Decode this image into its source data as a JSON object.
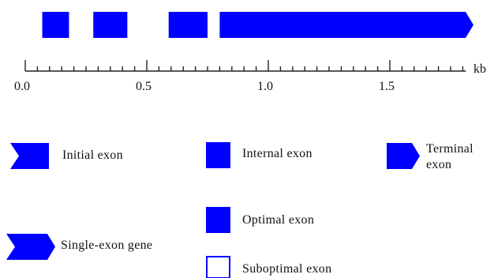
{
  "colors": {
    "exon": "#0000ff",
    "axis": "#222222"
  },
  "axis": {
    "unit": "kb",
    "min": 0.0,
    "max": 1.8,
    "major_ticks": [
      "0.0",
      "0.5",
      "1.0",
      "1.5"
    ],
    "minor_step": 0.05
  },
  "gene_track": {
    "exons": [
      {
        "type": "internal",
        "start": 0.07,
        "end": 0.18
      },
      {
        "type": "internal",
        "start": 0.28,
        "end": 0.42
      },
      {
        "type": "internal",
        "start": 0.59,
        "end": 0.75
      },
      {
        "type": "terminal",
        "start": 0.8,
        "end": 1.85
      }
    ]
  },
  "legend": {
    "initial_exon": "Initial exon",
    "internal_exon": "Internal exon",
    "terminal_exon_line1": "Terminal",
    "terminal_exon_line2": "exon",
    "optimal_exon": "Optimal exon",
    "single_exon_gene": "Single-exon gene",
    "suboptimal_exon": "Suboptimal exon"
  }
}
